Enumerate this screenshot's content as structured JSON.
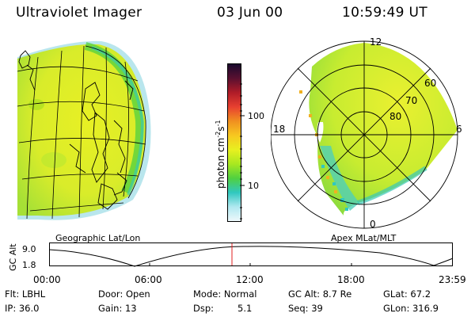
{
  "header": {
    "title": "Ultraviolet Imager",
    "date": "03 Jun 00",
    "time": "10:59:49 UT"
  },
  "colorbar": {
    "unit_label": "photon cm",
    "unit_sup1": "-2",
    "unit_mid": "s",
    "unit_sup2": "-1",
    "ticks": [
      "100",
      "10"
    ],
    "colors_top_to_bottom": [
      "#1a0a2e",
      "#5a1030",
      "#b01c28",
      "#e84030",
      "#f09020",
      "#f7c820",
      "#e8f020",
      "#a8e820",
      "#50d040",
      "#30c8c0",
      "#b0e8f0",
      "#eef8fb"
    ]
  },
  "panels": {
    "left_title": "Geographic Lat/Lon",
    "right_title": "Apex MLat/MLT",
    "mlt_labels": {
      "top": "12",
      "left": "18",
      "right": "6",
      "bottom": "0"
    },
    "mlat_labels": [
      "60",
      "70",
      "80"
    ]
  },
  "altitude_plot": {
    "ylabel": "GC Alt",
    "yticks": [
      "9.0",
      "1.8"
    ],
    "xticks": [
      "00:00",
      "06:00",
      "12:00",
      "18:00",
      "23:59"
    ],
    "marker_color": "#e02020"
  },
  "info": {
    "flt": "Flt: LBHL",
    "door": "Door: Open",
    "mode": "Mode: Normal",
    "gcalt": "GC Alt: 8.7 Re",
    "glat": "GLat: 67.2",
    "ip": "IP: 36.0",
    "gain": "Gain: 13",
    "dsp_label": "Dsp:",
    "dsp_value": "5.1",
    "seq": "Seq: 39",
    "glon": "GLon: 316.9"
  }
}
